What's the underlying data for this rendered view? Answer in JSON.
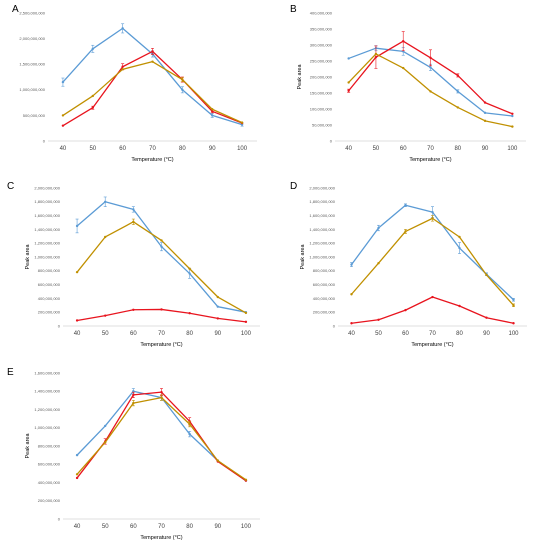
{
  "colors": {
    "blue": "#5b9bd5",
    "red": "#e8141e",
    "gold": "#c09000"
  },
  "chart_data": [
    {
      "panel": "A",
      "type": "line",
      "x": [
        40,
        50,
        60,
        70,
        80,
        90,
        100
      ],
      "xlabel": "Temperature (°C)",
      "ylabel": "",
      "ylim": [
        0,
        2500000000
      ],
      "ystep": 500000000,
      "yticks": [
        "0",
        "500,000,000",
        "1,000,000,000",
        "1,500,000,000",
        "2,000,000,000",
        "2,500,000,000"
      ],
      "series": [
        {
          "color": "blue",
          "values": [
            1150000000,
            1800000000,
            2200000000,
            1700000000,
            1000000000,
            500000000,
            320000000
          ],
          "err": [
            80000000,
            70000000,
            90000000,
            60000000,
            60000000,
            40000000,
            30000000
          ]
        },
        {
          "color": "red",
          "values": [
            300000000,
            650000000,
            1450000000,
            1750000000,
            1200000000,
            580000000,
            350000000
          ],
          "err": [
            0,
            30000000,
            60000000,
            60000000,
            50000000,
            30000000,
            0
          ]
        },
        {
          "color": "gold",
          "values": [
            500000000,
            880000000,
            1400000000,
            1550000000,
            1200000000,
            620000000,
            360000000
          ],
          "err": [
            0,
            0,
            0,
            0,
            40000000,
            0,
            0
          ]
        }
      ]
    },
    {
      "panel": "B",
      "type": "line",
      "x": [
        40,
        50,
        60,
        70,
        80,
        90,
        100
      ],
      "xlabel": "Temperature (°C)",
      "ylabel": "Peak area",
      "ylim": [
        0,
        400000000
      ],
      "ystep": 50000000,
      "yticks": [
        "0",
        "50,000,000",
        "100,000,000",
        "150,000,000",
        "200,000,000",
        "250,000,000",
        "300,000,000",
        "350,000,000",
        "400,000,000"
      ],
      "series": [
        {
          "color": "blue",
          "values": [
            258000000,
            290000000,
            280000000,
            230000000,
            155000000,
            88000000,
            78000000
          ],
          "err": [
            0,
            8000000,
            12000000,
            10000000,
            5000000,
            0,
            0
          ]
        },
        {
          "color": "red",
          "values": [
            157000000,
            262000000,
            312000000,
            260000000,
            205000000,
            120000000,
            85000000
          ],
          "err": [
            5000000,
            35000000,
            30000000,
            25000000,
            5000000,
            0,
            0
          ]
        },
        {
          "color": "gold",
          "values": [
            183000000,
            272000000,
            228000000,
            155000000,
            105000000,
            63000000,
            45000000
          ],
          "err": [
            0,
            0,
            0,
            0,
            0,
            0,
            0
          ]
        }
      ]
    },
    {
      "panel": "C",
      "type": "line",
      "x": [
        40,
        50,
        60,
        70,
        80,
        90,
        100
      ],
      "xlabel": "Temperature (°C)",
      "ylabel": "Peak area",
      "ylim": [
        0,
        2000000000
      ],
      "ystep": 200000000,
      "yticks": [
        "0",
        "200,000,000",
        "400,000,000",
        "600,000,000",
        "800,000,000",
        "1,000,000,000",
        "1,200,000,000",
        "1,400,000,000",
        "1,600,000,000",
        "1,800,000,000",
        "2,000,000,000"
      ],
      "series": [
        {
          "color": "blue",
          "values": [
            1450000000,
            1800000000,
            1690000000,
            1150000000,
            760000000,
            280000000,
            200000000
          ],
          "err": [
            100000000,
            70000000,
            40000000,
            60000000,
            70000000,
            0,
            0
          ]
        },
        {
          "color": "red",
          "values": [
            80000000,
            150000000,
            235000000,
            240000000,
            185000000,
            110000000,
            60000000
          ],
          "err": [
            0,
            0,
            0,
            0,
            0,
            0,
            0
          ]
        },
        {
          "color": "gold",
          "values": [
            780000000,
            1290000000,
            1510000000,
            1240000000,
            830000000,
            420000000,
            190000000
          ],
          "err": [
            0,
            0,
            40000000,
            0,
            0,
            0,
            0
          ]
        }
      ]
    },
    {
      "panel": "D",
      "type": "line",
      "x": [
        40,
        50,
        60,
        70,
        80,
        90,
        100
      ],
      "xlabel": "Temperature (°C)",
      "ylabel": "Peak area",
      "ylim": [
        0,
        2000000000
      ],
      "ystep": 200000000,
      "yticks": [
        "0",
        "200,000,000",
        "400,000,000",
        "600,000,000",
        "800,000,000",
        "1,000,000,000",
        "1,200,000,000",
        "1,400,000,000",
        "1,600,000,000",
        "1,800,000,000",
        "2,000,000,000"
      ],
      "series": [
        {
          "color": "blue",
          "values": [
            890000000,
            1420000000,
            1750000000,
            1650000000,
            1130000000,
            750000000,
            380000000
          ],
          "err": [
            30000000,
            40000000,
            20000000,
            80000000,
            80000000,
            20000000,
            20000000
          ]
        },
        {
          "color": "red",
          "values": [
            40000000,
            90000000,
            230000000,
            420000000,
            290000000,
            120000000,
            40000000
          ],
          "err": [
            0,
            0,
            0,
            0,
            0,
            0,
            0
          ]
        },
        {
          "color": "gold",
          "values": [
            460000000,
            910000000,
            1370000000,
            1560000000,
            1290000000,
            740000000,
            300000000
          ],
          "err": [
            0,
            0,
            30000000,
            40000000,
            0,
            0,
            20000000
          ]
        }
      ]
    },
    {
      "panel": "E",
      "type": "line",
      "x": [
        40,
        50,
        60,
        70,
        80,
        90,
        100
      ],
      "xlabel": "Temperature (°C)",
      "ylabel": "Peak area",
      "ylim": [
        0,
        1600000000
      ],
      "ystep": 200000000,
      "yticks": [
        "0",
        "200,000,000",
        "400,000,000",
        "600,000,000",
        "800,000,000",
        "1,000,000,000",
        "1,200,000,000",
        "1,400,000,000",
        "1,600,000,000"
      ],
      "series": [
        {
          "color": "blue",
          "values": [
            700000000,
            1020000000,
            1400000000,
            1330000000,
            930000000,
            640000000,
            420000000
          ],
          "err": [
            0,
            0,
            30000000,
            30000000,
            30000000,
            0,
            0
          ]
        },
        {
          "color": "red",
          "values": [
            450000000,
            850000000,
            1360000000,
            1390000000,
            1070000000,
            630000000,
            420000000
          ],
          "err": [
            0,
            30000000,
            30000000,
            40000000,
            40000000,
            0,
            0
          ]
        },
        {
          "color": "gold",
          "values": [
            490000000,
            840000000,
            1270000000,
            1330000000,
            1040000000,
            640000000,
            430000000
          ],
          "err": [
            0,
            0,
            30000000,
            30000000,
            30000000,
            0,
            0
          ]
        }
      ]
    }
  ]
}
